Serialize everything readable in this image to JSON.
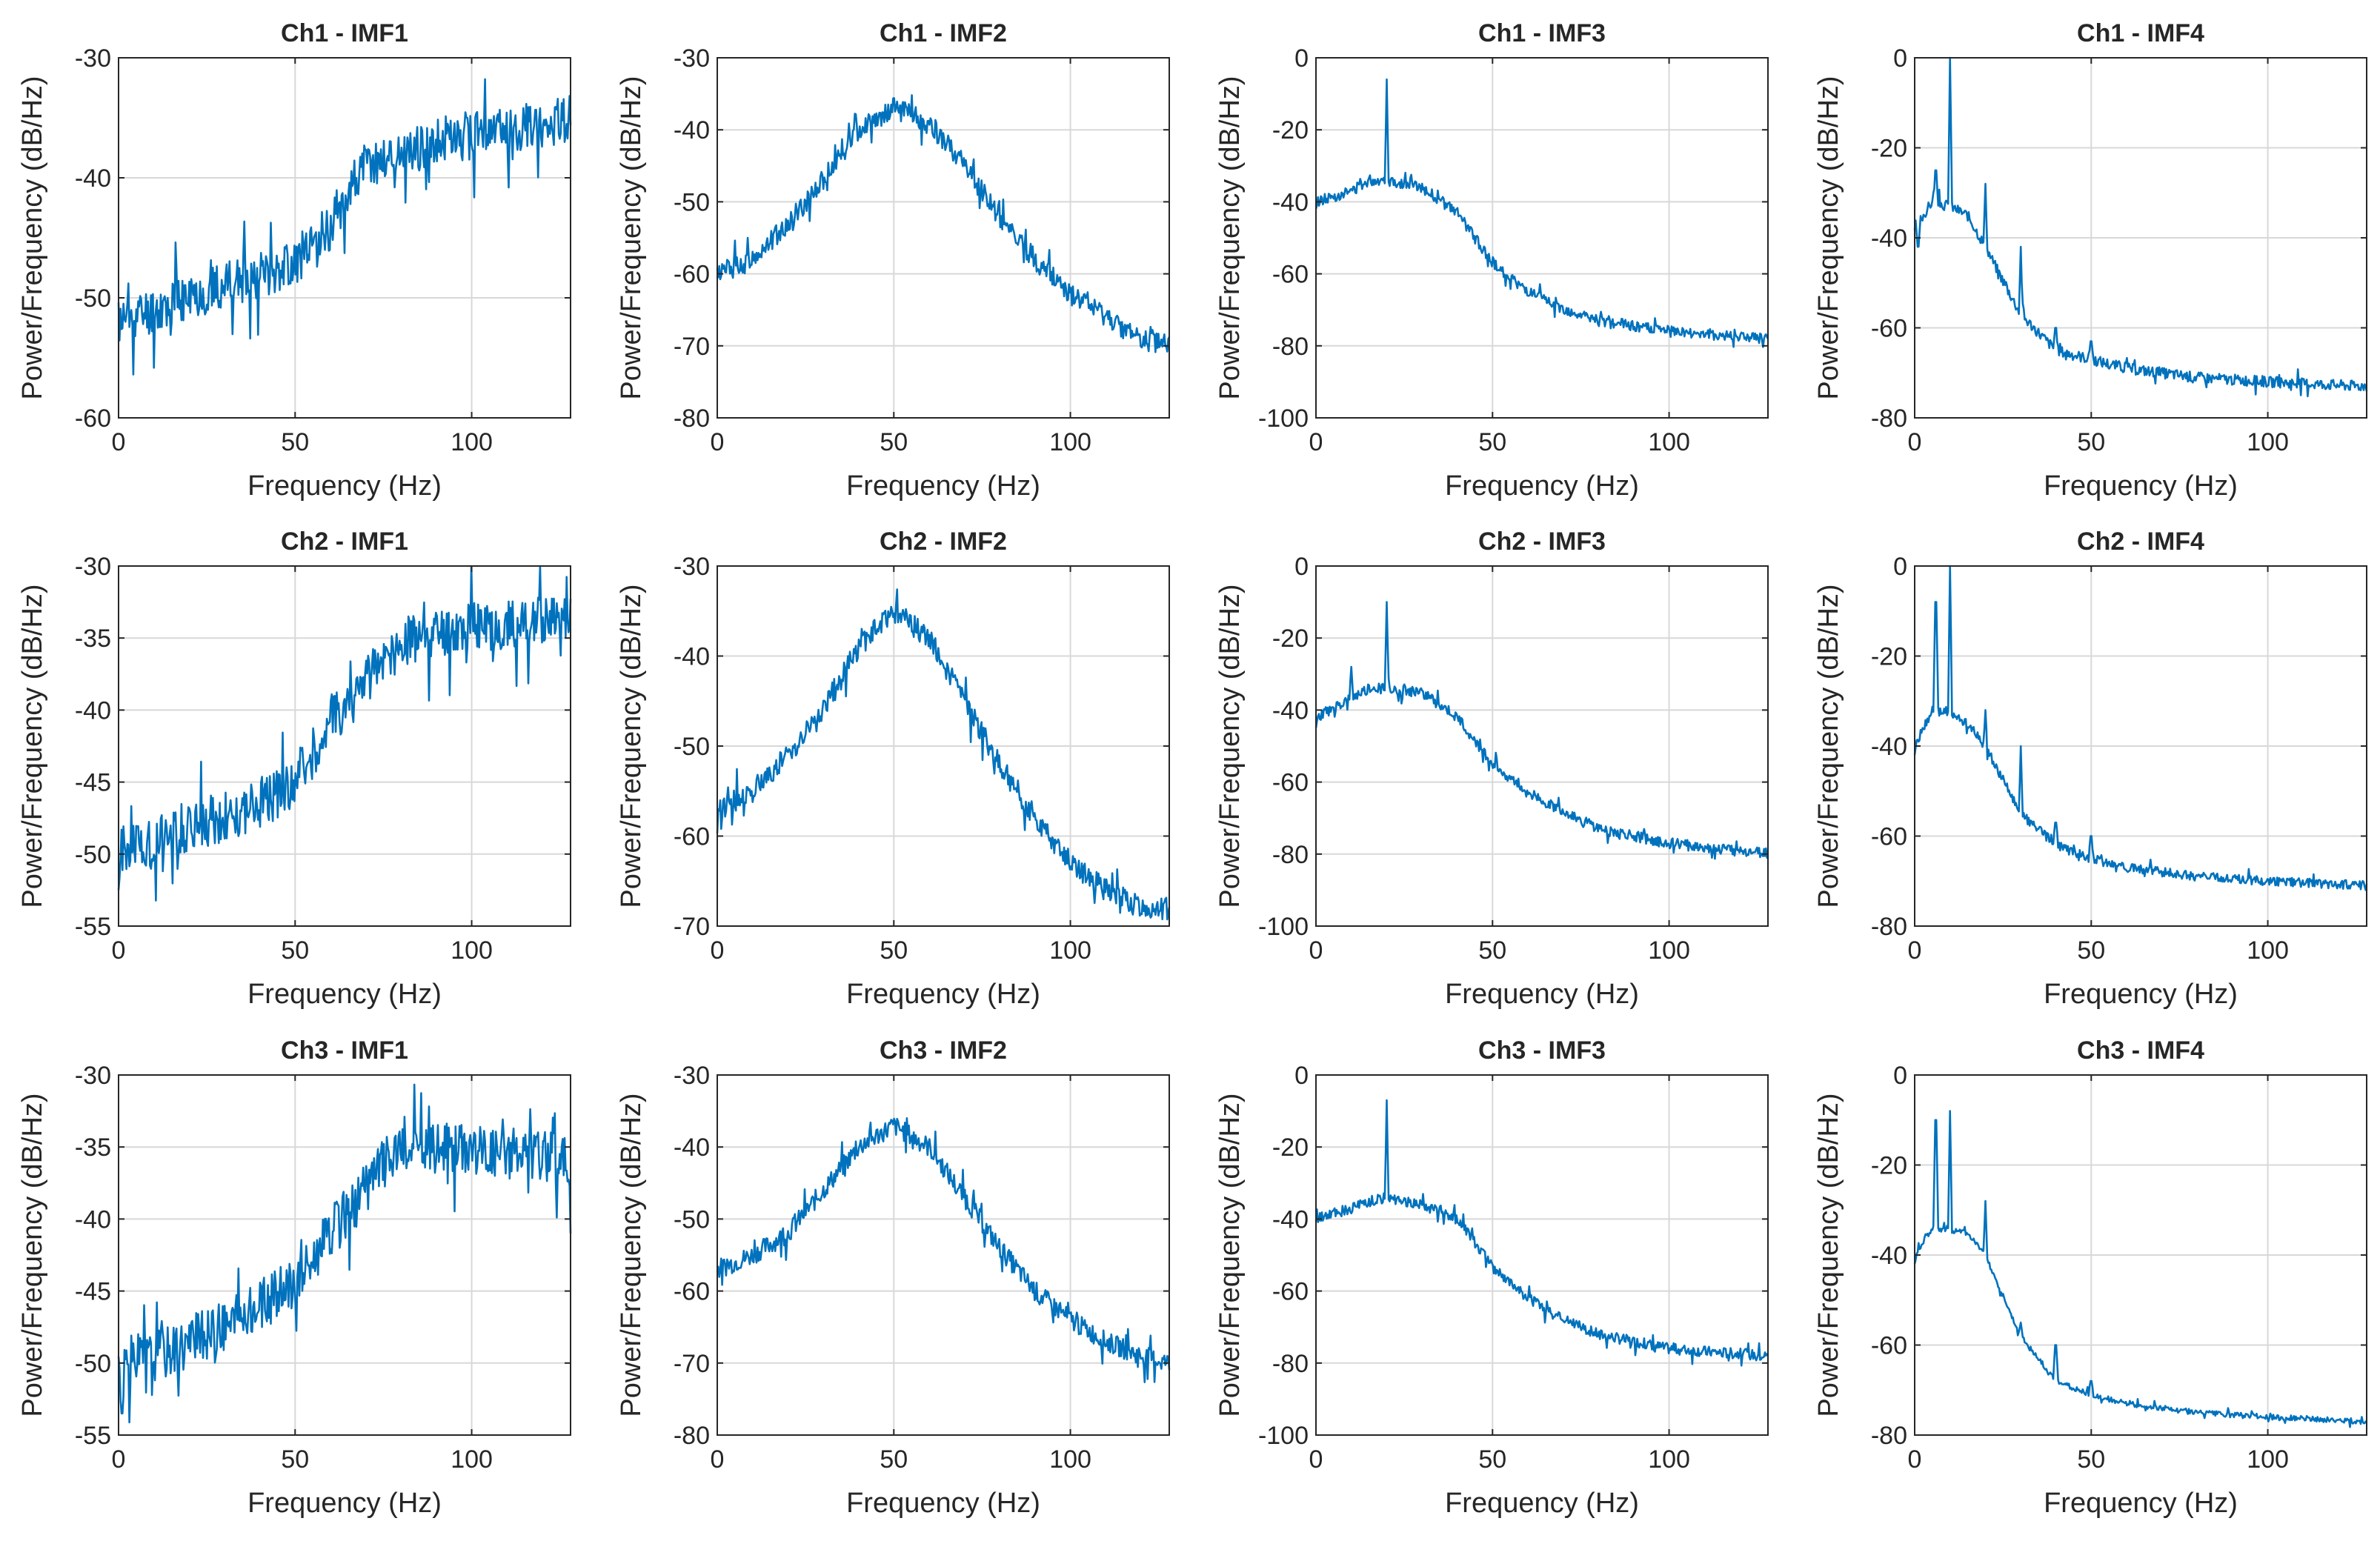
{
  "figure": {
    "rows": 3,
    "cols": 4,
    "line_color": "#0072BD",
    "grid_color": "#d8d8d8",
    "axis_color": "#262626"
  },
  "chart_data": [
    {
      "type": "line",
      "title": "Ch1 - IMF1",
      "xlabel": "Frequency (Hz)",
      "ylabel": "Power/Frequency (dB/Hz)",
      "xlim": [
        0,
        128
      ],
      "ylim": [
        -60,
        -30
      ],
      "xticks": [
        0,
        50,
        100
      ],
      "yticks": [
        -60,
        -50,
        -40,
        -30
      ],
      "grid": true,
      "noise": 2.0,
      "seed": 11,
      "points": [
        [
          0,
          -52
        ],
        [
          10,
          -51
        ],
        [
          20,
          -50
        ],
        [
          30,
          -49
        ],
        [
          40,
          -48
        ],
        [
          50,
          -47
        ],
        [
          55,
          -46
        ],
        [
          60,
          -44
        ],
        [
          65,
          -41
        ],
        [
          70,
          -39
        ],
        [
          80,
          -38
        ],
        [
          90,
          -37
        ],
        [
          100,
          -36.5
        ],
        [
          110,
          -36
        ],
        [
          120,
          -35.5
        ],
        [
          128,
          -35
        ]
      ],
      "spikes": []
    },
    {
      "type": "line",
      "title": "Ch1 - IMF2",
      "xlabel": "Frequency (Hz)",
      "ylabel": "Power/Frequency (dB/Hz)",
      "xlim": [
        0,
        128
      ],
      "ylim": [
        -80,
        -30
      ],
      "xticks": [
        0,
        50,
        100
      ],
      "yticks": [
        -80,
        -70,
        -60,
        -50,
        -40,
        -30
      ],
      "grid": true,
      "noise": 1.5,
      "seed": 12,
      "points": [
        [
          0,
          -60
        ],
        [
          10,
          -58
        ],
        [
          20,
          -53
        ],
        [
          30,
          -47
        ],
        [
          40,
          -40
        ],
        [
          50,
          -37
        ],
        [
          60,
          -39
        ],
        [
          70,
          -45
        ],
        [
          80,
          -52
        ],
        [
          90,
          -58
        ],
        [
          100,
          -63
        ],
        [
          110,
          -66
        ],
        [
          120,
          -69
        ],
        [
          128,
          -70
        ]
      ],
      "spikes": []
    },
    {
      "type": "line",
      "title": "Ch1 - IMF3",
      "xlabel": "Frequency (Hz)",
      "ylabel": "Power/Frequency (dB/Hz)",
      "xlim": [
        0,
        128
      ],
      "ylim": [
        -100,
        0
      ],
      "xticks": [
        0,
        50,
        100
      ],
      "yticks": [
        -100,
        -80,
        -60,
        -40,
        -20,
        0
      ],
      "grid": true,
      "noise": 1.5,
      "seed": 13,
      "points": [
        [
          0,
          -40
        ],
        [
          10,
          -37
        ],
        [
          15,
          -34
        ],
        [
          20,
          -34
        ],
        [
          30,
          -36
        ],
        [
          40,
          -43
        ],
        [
          50,
          -57
        ],
        [
          60,
          -65
        ],
        [
          70,
          -70
        ],
        [
          80,
          -73
        ],
        [
          100,
          -76
        ],
        [
          128,
          -78
        ]
      ],
      "spikes": [
        [
          20,
          -6
        ],
        [
          0,
          -42
        ]
      ]
    },
    {
      "type": "line",
      "title": "Ch1 - IMF4",
      "xlabel": "Frequency (Hz)",
      "ylabel": "Power/Frequency (dB/Hz)",
      "xlim": [
        0,
        128
      ],
      "ylim": [
        -80,
        0
      ],
      "xticks": [
        0,
        50,
        100
      ],
      "yticks": [
        -80,
        -60,
        -40,
        -20,
        0
      ],
      "grid": true,
      "noise": 1.2,
      "seed": 14,
      "points": [
        [
          0,
          -38
        ],
        [
          5,
          -32
        ],
        [
          10,
          -33
        ],
        [
          15,
          -35
        ],
        [
          20,
          -42
        ],
        [
          30,
          -57
        ],
        [
          40,
          -65
        ],
        [
          50,
          -67
        ],
        [
          60,
          -69
        ],
        [
          80,
          -71
        ],
        [
          100,
          -72
        ],
        [
          128,
          -73
        ]
      ],
      "spikes": [
        [
          10,
          0
        ],
        [
          6,
          -25
        ],
        [
          20,
          -28
        ],
        [
          30,
          -42
        ],
        [
          40,
          -60
        ],
        [
          50,
          -63
        ],
        [
          1,
          -42
        ]
      ]
    },
    {
      "type": "line",
      "title": "Ch2 - IMF1",
      "xlabel": "Frequency (Hz)",
      "ylabel": "Power/Frequency (dB/Hz)",
      "xlim": [
        0,
        128
      ],
      "ylim": [
        -55,
        -30
      ],
      "xticks": [
        0,
        50,
        100
      ],
      "yticks": [
        -55,
        -50,
        -45,
        -40,
        -35,
        -30
      ],
      "grid": true,
      "noise": 1.8,
      "seed": 21,
      "points": [
        [
          0,
          -50
        ],
        [
          10,
          -49
        ],
        [
          20,
          -48
        ],
        [
          30,
          -47.5
        ],
        [
          40,
          -46.5
        ],
        [
          50,
          -45
        ],
        [
          55,
          -43
        ],
        [
          60,
          -41
        ],
        [
          70,
          -38
        ],
        [
          80,
          -35.5
        ],
        [
          90,
          -34.5
        ],
        [
          100,
          -34
        ],
        [
          110,
          -34
        ],
        [
          120,
          -34
        ],
        [
          128,
          -34
        ]
      ],
      "spikes": [
        [
          0,
          -52.5
        ]
      ]
    },
    {
      "type": "line",
      "title": "Ch2 - IMF2",
      "xlabel": "Frequency (Hz)",
      "ylabel": "Power/Frequency (dB/Hz)",
      "xlim": [
        0,
        128
      ],
      "ylim": [
        -70,
        -30
      ],
      "xticks": [
        0,
        50,
        100
      ],
      "yticks": [
        -70,
        -60,
        -50,
        -40,
        -30
      ],
      "grid": true,
      "noise": 1.3,
      "seed": 22,
      "points": [
        [
          0,
          -57
        ],
        [
          10,
          -55
        ],
        [
          20,
          -51
        ],
        [
          30,
          -46
        ],
        [
          40,
          -39
        ],
        [
          50,
          -35
        ],
        [
          60,
          -38
        ],
        [
          70,
          -45
        ],
        [
          80,
          -52
        ],
        [
          90,
          -58
        ],
        [
          100,
          -63
        ],
        [
          110,
          -66
        ],
        [
          120,
          -68
        ],
        [
          128,
          -68
        ]
      ],
      "spikes": []
    },
    {
      "type": "line",
      "title": "Ch2 - IMF3",
      "xlabel": "Frequency (Hz)",
      "ylabel": "Power/Frequency (dB/Hz)",
      "xlim": [
        0,
        128
      ],
      "ylim": [
        -100,
        0
      ],
      "xticks": [
        0,
        50,
        100
      ],
      "yticks": [
        -100,
        -80,
        -60,
        -40,
        -20,
        0
      ],
      "grid": true,
      "noise": 1.5,
      "seed": 23,
      "points": [
        [
          0,
          -42
        ],
        [
          10,
          -37
        ],
        [
          15,
          -34
        ],
        [
          20,
          -34
        ],
        [
          30,
          -35
        ],
        [
          40,
          -42
        ],
        [
          50,
          -55
        ],
        [
          60,
          -63
        ],
        [
          70,
          -68
        ],
        [
          80,
          -73
        ],
        [
          100,
          -77
        ],
        [
          128,
          -80
        ]
      ],
      "spikes": [
        [
          20,
          -10
        ],
        [
          10,
          -28
        ],
        [
          0,
          -45
        ]
      ]
    },
    {
      "type": "line",
      "title": "Ch2 - IMF4",
      "xlabel": "Frequency (Hz)",
      "ylabel": "Power/Frequency (dB/Hz)",
      "xlim": [
        0,
        128
      ],
      "ylim": [
        -80,
        0
      ],
      "xticks": [
        0,
        50,
        100
      ],
      "yticks": [
        -80,
        -60,
        -40,
        -20,
        0
      ],
      "grid": true,
      "noise": 1.0,
      "seed": 24,
      "points": [
        [
          0,
          -40
        ],
        [
          5,
          -32
        ],
        [
          10,
          -33
        ],
        [
          15,
          -35
        ],
        [
          20,
          -40
        ],
        [
          30,
          -55
        ],
        [
          40,
          -62
        ],
        [
          50,
          -65
        ],
        [
          60,
          -67
        ],
        [
          80,
          -69
        ],
        [
          100,
          -70
        ],
        [
          128,
          -71
        ]
      ],
      "spikes": [
        [
          10,
          1
        ],
        [
          6,
          -8
        ],
        [
          20,
          -32
        ],
        [
          30,
          -40
        ],
        [
          40,
          -57
        ],
        [
          50,
          -60
        ],
        [
          0,
          -42
        ]
      ]
    },
    {
      "type": "line",
      "title": "Ch3 - IMF1",
      "xlabel": "Frequency (Hz)",
      "ylabel": "Power/Frequency (dB/Hz)",
      "xlim": [
        0,
        128
      ],
      "ylim": [
        -55,
        -30
      ],
      "xticks": [
        0,
        50,
        100
      ],
      "yticks": [
        -55,
        -50,
        -45,
        -40,
        -35,
        -30
      ],
      "grid": true,
      "noise": 1.8,
      "seed": 31,
      "points": [
        [
          0,
          -50
        ],
        [
          10,
          -49.5
        ],
        [
          20,
          -48.5
        ],
        [
          30,
          -47.5
        ],
        [
          40,
          -46
        ],
        [
          50,
          -44.5
        ],
        [
          60,
          -41
        ],
        [
          70,
          -38
        ],
        [
          75,
          -36
        ],
        [
          80,
          -35.5
        ],
        [
          90,
          -35
        ],
        [
          100,
          -35
        ],
        [
          110,
          -35.5
        ],
        [
          120,
          -35.5
        ],
        [
          128,
          -36
        ]
      ],
      "spikes": [
        [
          1,
          -53.5
        ],
        [
          128,
          -41
        ]
      ]
    },
    {
      "type": "line",
      "title": "Ch3 - IMF2",
      "xlabel": "Frequency (Hz)",
      "ylabel": "Power/Frequency (dB/Hz)",
      "xlim": [
        0,
        128
      ],
      "ylim": [
        -80,
        -30
      ],
      "xticks": [
        0,
        50,
        100
      ],
      "yticks": [
        -80,
        -70,
        -60,
        -50,
        -40,
        -30
      ],
      "grid": true,
      "noise": 1.4,
      "seed": 32,
      "points": [
        [
          0,
          -57
        ],
        [
          10,
          -55
        ],
        [
          20,
          -52
        ],
        [
          30,
          -46
        ],
        [
          40,
          -40
        ],
        [
          50,
          -37
        ],
        [
          60,
          -40
        ],
        [
          70,
          -47
        ],
        [
          80,
          -54
        ],
        [
          90,
          -60
        ],
        [
          100,
          -64
        ],
        [
          110,
          -67
        ],
        [
          120,
          -69
        ],
        [
          128,
          -70
        ]
      ],
      "spikes": []
    },
    {
      "type": "line",
      "title": "Ch3 - IMF3",
      "xlabel": "Frequency (Hz)",
      "ylabel": "Power/Frequency (dB/Hz)",
      "xlim": [
        0,
        128
      ],
      "ylim": [
        -100,
        0
      ],
      "xticks": [
        0,
        50,
        100
      ],
      "yticks": [
        -100,
        -80,
        -60,
        -40,
        -20,
        0
      ],
      "grid": true,
      "noise": 1.5,
      "seed": 33,
      "points": [
        [
          0,
          -40
        ],
        [
          10,
          -37
        ],
        [
          20,
          -34
        ],
        [
          30,
          -36
        ],
        [
          40,
          -40
        ],
        [
          50,
          -53
        ],
        [
          60,
          -62
        ],
        [
          70,
          -68
        ],
        [
          80,
          -72
        ],
        [
          100,
          -76
        ],
        [
          128,
          -78
        ]
      ],
      "spikes": [
        [
          20,
          -7
        ]
      ]
    },
    {
      "type": "line",
      "title": "Ch3 - IMF4",
      "xlabel": "Frequency (Hz)",
      "ylabel": "Power/Frequency (dB/Hz)",
      "xlim": [
        0,
        128
      ],
      "ylim": [
        -80,
        0
      ],
      "xticks": [
        0,
        50,
        100
      ],
      "yticks": [
        -80,
        -60,
        -40,
        -20,
        0
      ],
      "grid": true,
      "noise": 0.6,
      "seed": 34,
      "points": [
        [
          0,
          -40
        ],
        [
          5,
          -34
        ],
        [
          15,
          -35
        ],
        [
          20,
          -40
        ],
        [
          30,
          -58
        ],
        [
          40,
          -68
        ],
        [
          50,
          -71
        ],
        [
          60,
          -73
        ],
        [
          80,
          -75
        ],
        [
          100,
          -76
        ],
        [
          128,
          -77
        ]
      ],
      "spikes": [
        [
          6,
          -10
        ],
        [
          10,
          -8
        ],
        [
          20,
          -28
        ],
        [
          30,
          -55
        ],
        [
          40,
          -60
        ],
        [
          50,
          -68
        ],
        [
          0,
          -42
        ]
      ]
    }
  ]
}
